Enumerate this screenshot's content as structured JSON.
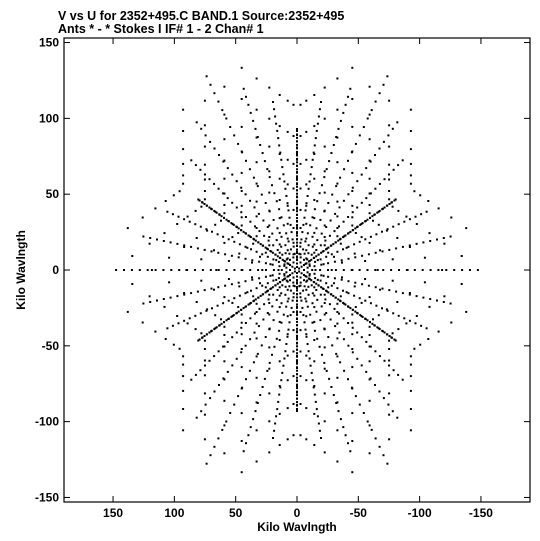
{
  "header": {
    "line1": "V vs U for 2352+495.C BAND.1   Source:2352+495",
    "line2": "Ants * - *     Stokes I  IF# 1 - 2  Chan# 1"
  },
  "chart_data": {
    "type": "scatter",
    "title": "V vs U for 2352+495.C BAND.1   Source:2352+495",
    "subtitle": "Ants * - *     Stokes I  IF# 1 - 2  Chan# 1",
    "xlabel": "Kilo Wavlngth",
    "ylabel": "Kilo Wavlngth",
    "xlim": [
      190,
      -190
    ],
    "ylim": [
      -153,
      153
    ],
    "x_reversed": true,
    "grid": false,
    "xticks": [
      150,
      100,
      50,
      0,
      -50,
      -100,
      -150
    ],
    "xtick_labels": [
      "150",
      "100",
      "50",
      "0",
      "-50",
      "-100",
      "-150"
    ],
    "yticks": [
      150,
      100,
      50,
      0,
      -50,
      -100,
      -150
    ],
    "ytick_labels": [
      "150",
      "100",
      "50",
      "0",
      "-50",
      "-100",
      "-150"
    ],
    "marker_color": "#000000",
    "uv_coverage": {
      "arm_angles_deg": [
        90,
        30,
        -30,
        -90,
        -150,
        150
      ],
      "baseline_radius_min": 2,
      "baseline_radius_max": 147,
      "points_per_radial": 44,
      "radial_directions": 36
    }
  }
}
